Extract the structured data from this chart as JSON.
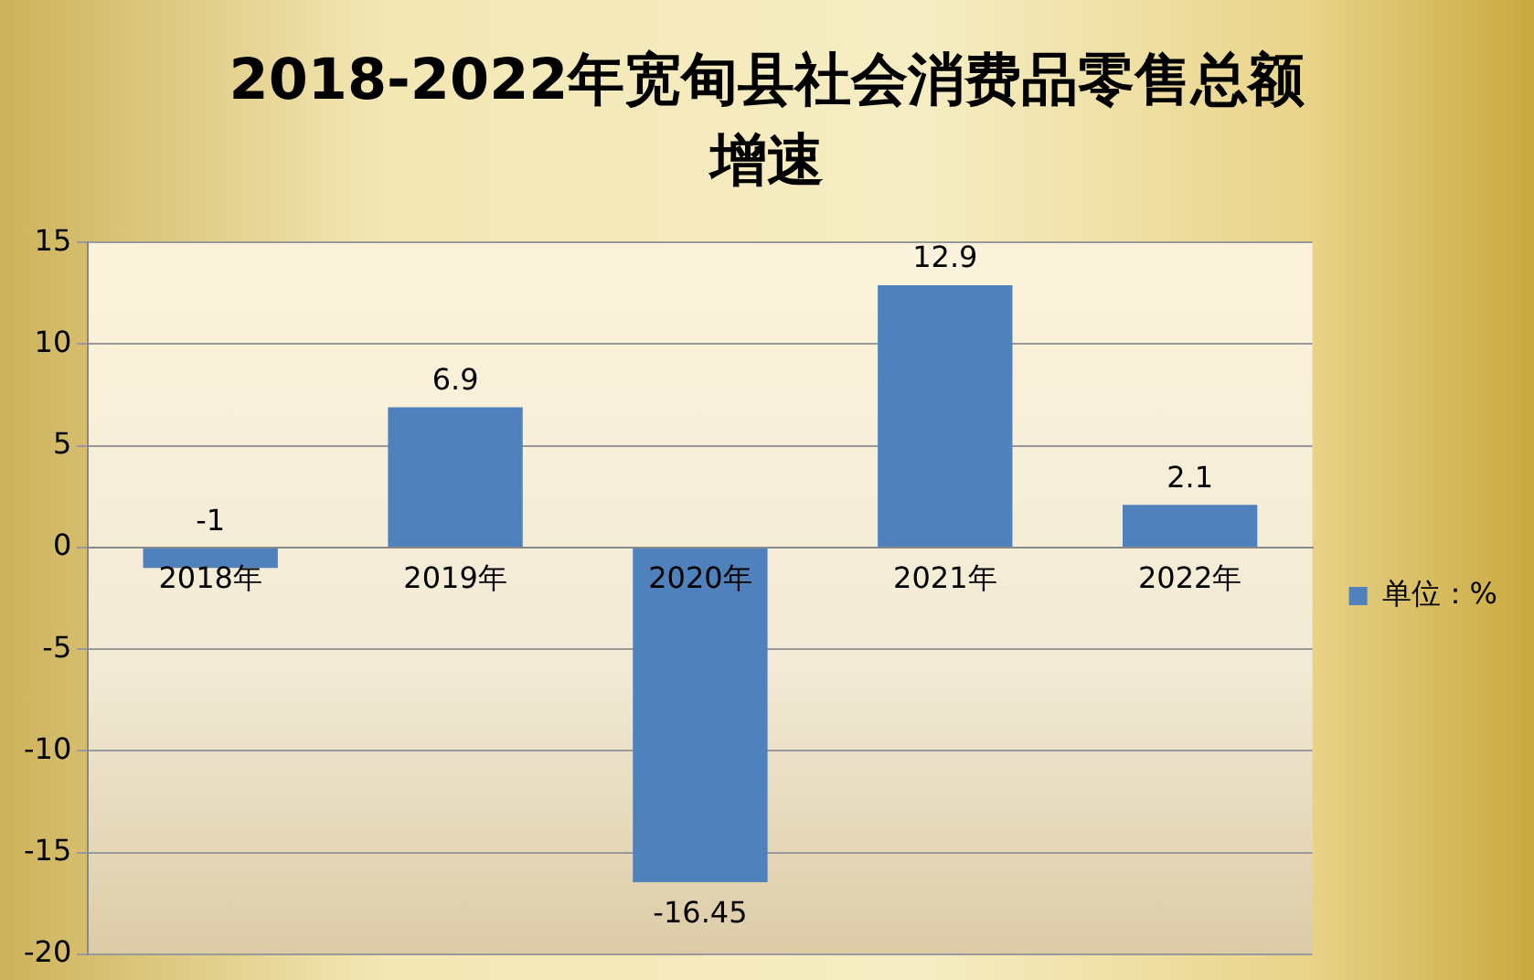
{
  "chart_data": {
    "type": "bar",
    "title": "2018-2022年宽甸县社会消费品零售总额增速",
    "categories": [
      "2018年",
      "2019年",
      "2020年",
      "2021年",
      "2022年"
    ],
    "series": [
      {
        "name": "单位：%",
        "color": "#4f81bd",
        "values": [
          -1,
          6.9,
          -16.45,
          12.9,
          2.1
        ]
      }
    ],
    "ylim": [
      -20,
      15
    ],
    "yticks": [
      -20,
      -15,
      -10,
      -5,
      0,
      5,
      10,
      15
    ],
    "grid": "y",
    "legend": "right",
    "data_labels": true
  }
}
